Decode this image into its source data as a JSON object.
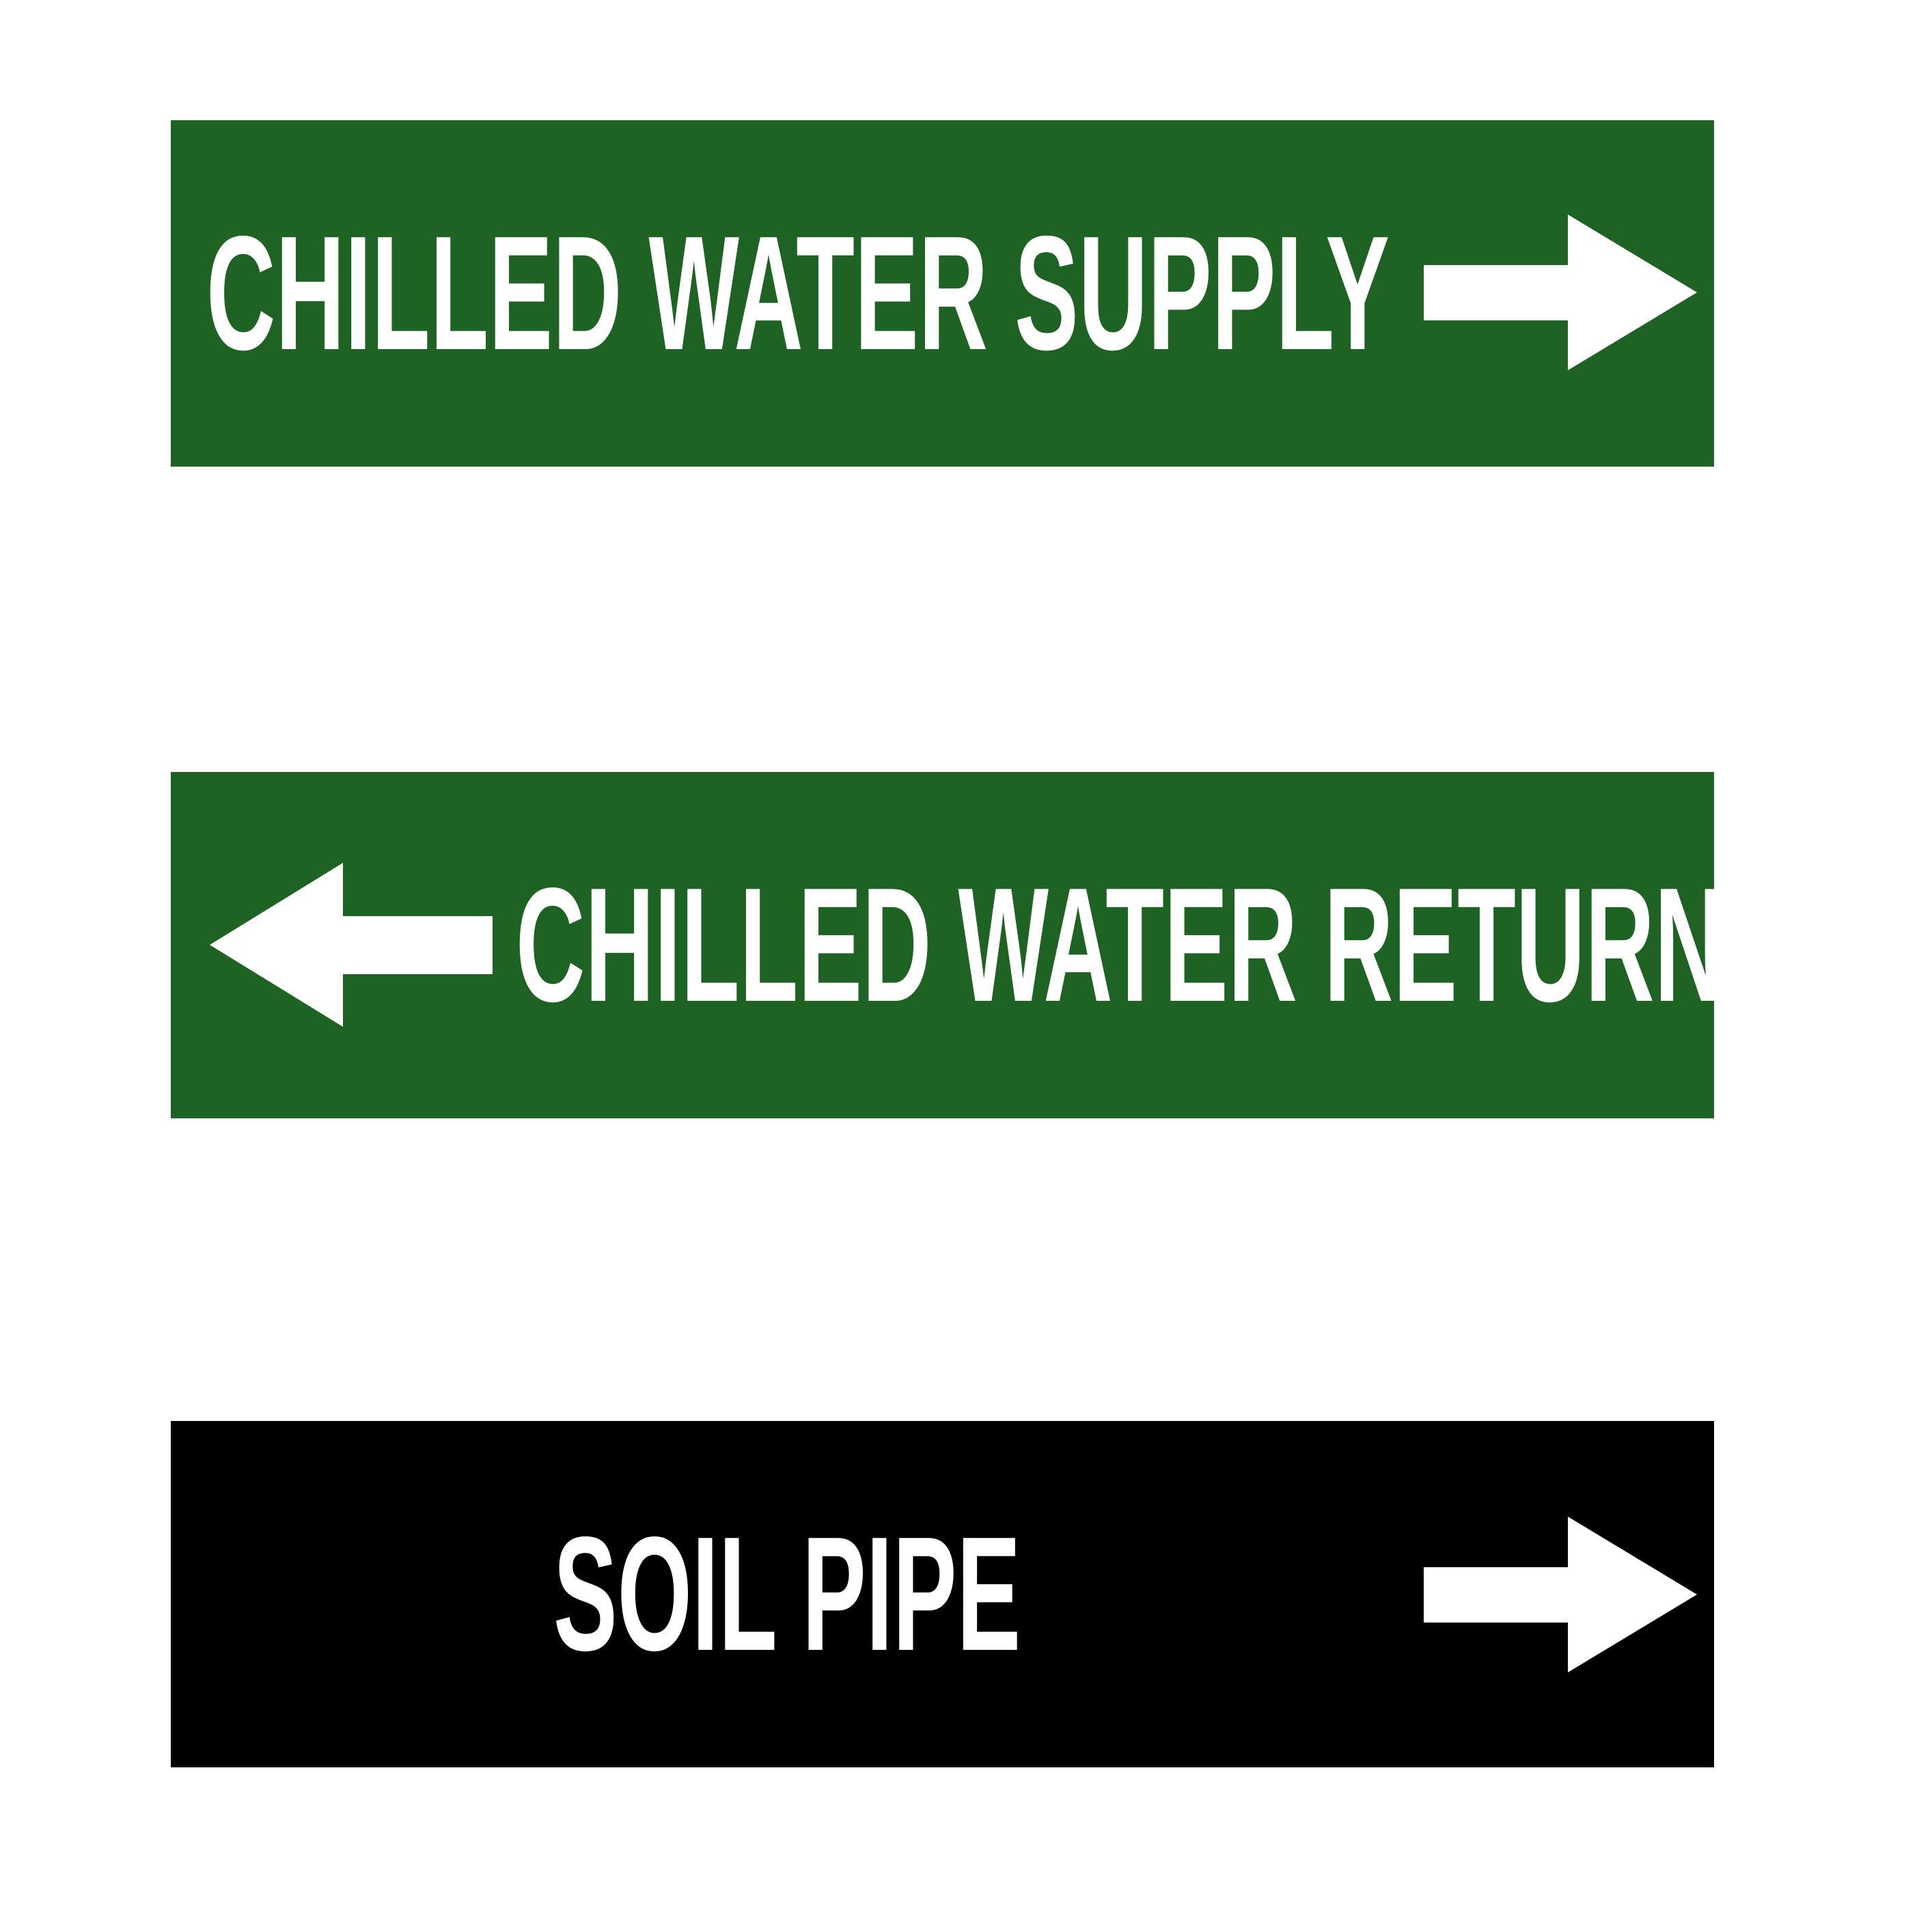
{
  "labels": [
    {
      "text": "CHILLED WATER SUPPLY",
      "arrow_direction": "right",
      "background": "#1e6324",
      "foreground": "#ffffff",
      "icon": "arrow-right-icon"
    },
    {
      "text": "CHILLED WATER RETURN",
      "arrow_direction": "left",
      "background": "#1e6324",
      "foreground": "#ffffff",
      "icon": "arrow-left-icon"
    },
    {
      "text": "SOIL PIPE",
      "arrow_direction": "right",
      "background": "#000000",
      "foreground": "#ffffff",
      "icon": "arrow-right-icon"
    }
  ]
}
